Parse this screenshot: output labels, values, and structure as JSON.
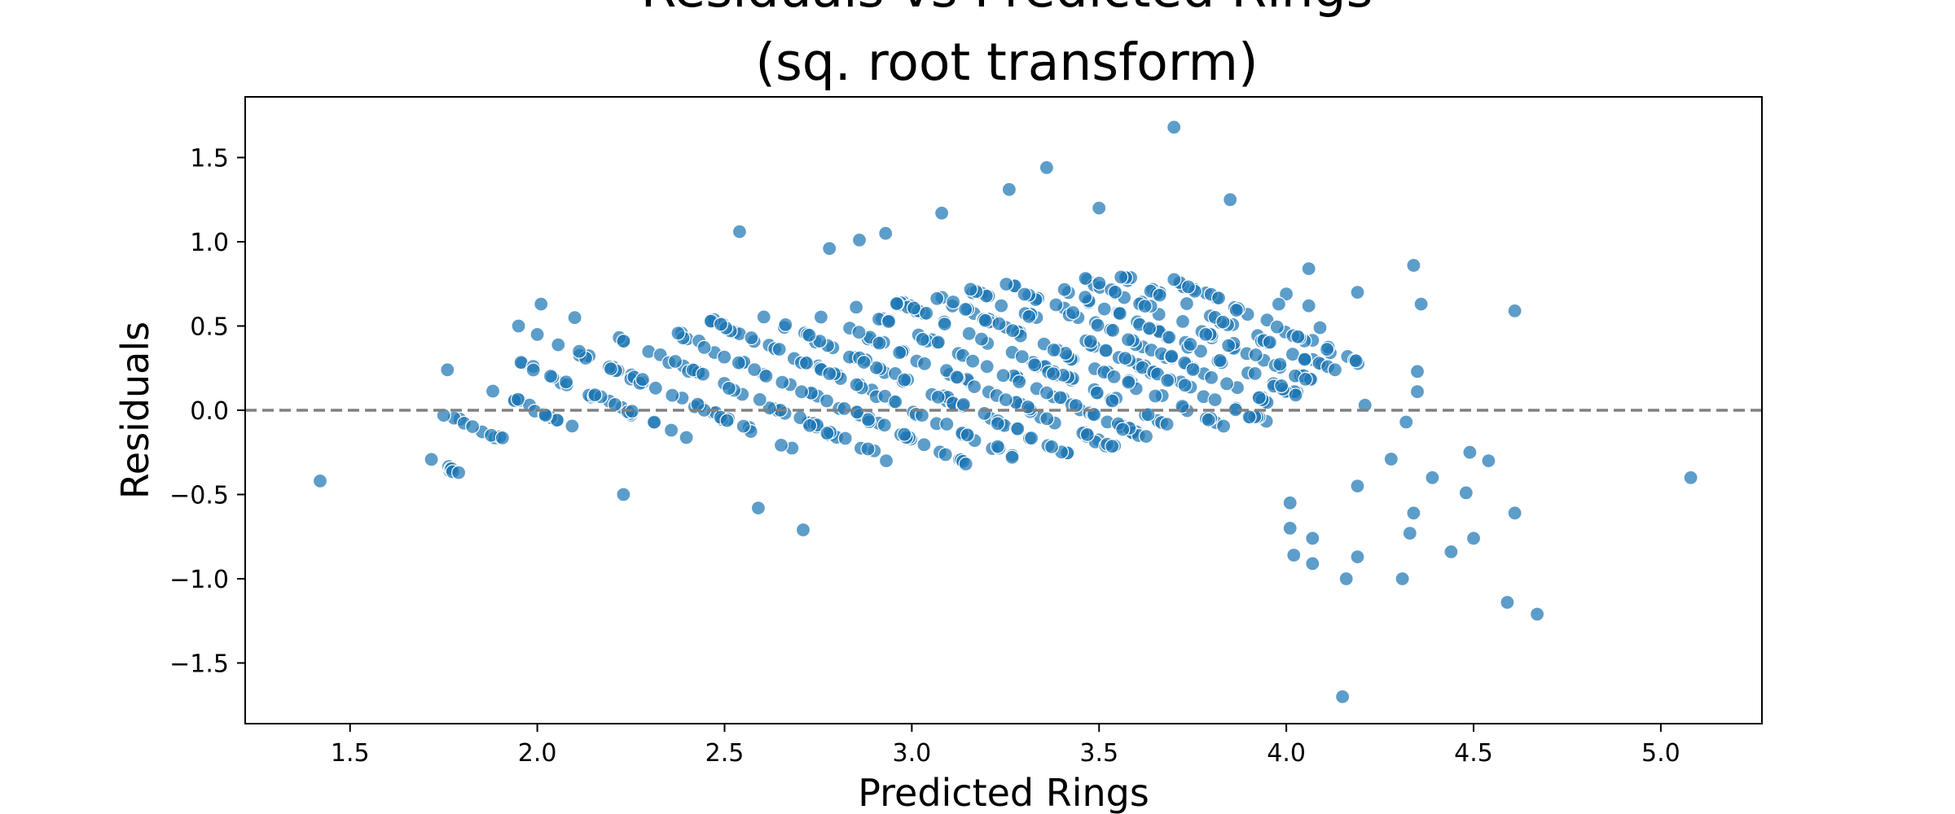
{
  "chart_data": {
    "type": "scatter",
    "title_lines": [
      "Residuals vs Predicted Rings",
      "(sq. root transform)"
    ],
    "xlabel": "Predicted Rings",
    "ylabel": "Residuals",
    "xlim": [
      1.22,
      5.27
    ],
    "ylim": [
      -1.86,
      1.86
    ],
    "xticks": [
      1.5,
      2.0,
      2.5,
      3.0,
      3.5,
      4.0,
      4.5,
      5.0
    ],
    "xtick_labels": [
      "1.5",
      "2.0",
      "2.5",
      "3.0",
      "3.5",
      "4.0",
      "4.5",
      "5.0"
    ],
    "yticks": [
      -1.5,
      -1.0,
      -0.5,
      0.0,
      0.5,
      1.0,
      1.5
    ],
    "ytick_labels": [
      "−1.5",
      "−1.0",
      "−0.5",
      "0.0",
      "0.5",
      "1.0",
      "1.5"
    ],
    "reference_line": {
      "y": 0.0,
      "style": "dashed",
      "color": "#808080"
    },
    "point_color": "#1f77b4",
    "grid": false,
    "diagonal_bands": {
      "description": "integer ring values produce residual = sqrt(rings) - predicted diagonal bands",
      "ring_values": [
        2,
        3,
        4,
        5,
        6,
        7,
        8,
        9,
        10,
        11,
        12,
        13,
        14,
        15,
        16,
        17,
        18,
        19,
        20
      ],
      "x_ranges": [
        [
          1.7,
          1.8
        ],
        [
          1.76,
          1.92
        ],
        [
          1.84,
          2.1
        ],
        [
          1.95,
          2.4
        ],
        [
          2.05,
          2.7
        ],
        [
          2.2,
          2.95
        ],
        [
          2.35,
          3.15
        ],
        [
          2.45,
          3.3
        ],
        [
          2.6,
          3.45
        ],
        [
          2.75,
          3.55
        ],
        [
          2.85,
          3.65
        ],
        [
          2.95,
          3.75
        ],
        [
          3.05,
          3.85
        ],
        [
          3.15,
          3.95
        ],
        [
          3.25,
          4.0
        ],
        [
          3.35,
          4.05
        ],
        [
          3.45,
          4.1
        ],
        [
          3.55,
          4.15
        ],
        [
          3.65,
          4.2
        ]
      ]
    },
    "outliers": [
      {
        "x": 1.42,
        "y": -0.42
      },
      {
        "x": 1.79,
        "y": -0.37
      },
      {
        "x": 2.23,
        "y": -0.5
      },
      {
        "x": 2.54,
        "y": 1.06
      },
      {
        "x": 3.7,
        "y": 1.68
      },
      {
        "x": 3.36,
        "y": 1.44
      },
      {
        "x": 3.26,
        "y": 1.31
      },
      {
        "x": 3.85,
        "y": 1.25
      },
      {
        "x": 3.5,
        "y": 1.2
      },
      {
        "x": 3.08,
        "y": 1.17
      },
      {
        "x": 2.78,
        "y": 0.96
      },
      {
        "x": 2.93,
        "y": 1.05
      },
      {
        "x": 2.86,
        "y": 1.01
      },
      {
        "x": 4.15,
        "y": -1.7
      },
      {
        "x": 4.67,
        "y": -1.21
      },
      {
        "x": 4.59,
        "y": -1.14
      },
      {
        "x": 4.31,
        "y": -1.0
      },
      {
        "x": 4.44,
        "y": -0.84
      },
      {
        "x": 4.5,
        "y": -0.76
      },
      {
        "x": 4.33,
        "y": -0.73
      },
      {
        "x": 4.34,
        "y": -0.61
      },
      {
        "x": 4.61,
        "y": -0.61
      },
      {
        "x": 4.48,
        "y": -0.49
      },
      {
        "x": 4.39,
        "y": -0.4
      },
      {
        "x": 4.49,
        "y": -0.25
      },
      {
        "x": 4.54,
        "y": -0.3
      },
      {
        "x": 4.28,
        "y": -0.29
      },
      {
        "x": 4.32,
        "y": -0.07
      },
      {
        "x": 4.35,
        "y": 0.11
      },
      {
        "x": 4.35,
        "y": 0.23
      },
      {
        "x": 4.36,
        "y": 0.63
      },
      {
        "x": 4.34,
        "y": 0.86
      },
      {
        "x": 4.61,
        "y": 0.59
      },
      {
        "x": 5.08,
        "y": -0.4
      },
      {
        "x": 4.19,
        "y": 0.7
      },
      {
        "x": 4.21,
        "y": 0.03
      },
      {
        "x": 4.19,
        "y": -0.45
      },
      {
        "x": 4.19,
        "y": -0.87
      },
      {
        "x": 4.16,
        "y": -1.0
      },
      {
        "x": 4.07,
        "y": -0.91
      },
      {
        "x": 4.02,
        "y": -0.86
      },
      {
        "x": 4.07,
        "y": -0.76
      },
      {
        "x": 4.01,
        "y": -0.7
      },
      {
        "x": 4.01,
        "y": -0.55
      },
      {
        "x": 4.06,
        "y": 0.62
      },
      {
        "x": 4.06,
        "y": 0.84
      },
      {
        "x": 4.09,
        "y": 0.49
      },
      {
        "x": 4.0,
        "y": 0.69
      },
      {
        "x": 3.98,
        "y": 0.63
      },
      {
        "x": 4.13,
        "y": 0.24
      },
      {
        "x": 2.1,
        "y": 0.55
      },
      {
        "x": 2.01,
        "y": 0.63
      },
      {
        "x": 1.95,
        "y": 0.5
      },
      {
        "x": 2.0,
        "y": 0.45
      },
      {
        "x": 1.76,
        "y": 0.24
      },
      {
        "x": 1.75,
        "y": -0.03
      },
      {
        "x": 2.23,
        "y": 0.41
      },
      {
        "x": 2.49,
        "y": 0.51
      },
      {
        "x": 2.71,
        "y": -0.71
      },
      {
        "x": 2.59,
        "y": -0.58
      }
    ]
  }
}
